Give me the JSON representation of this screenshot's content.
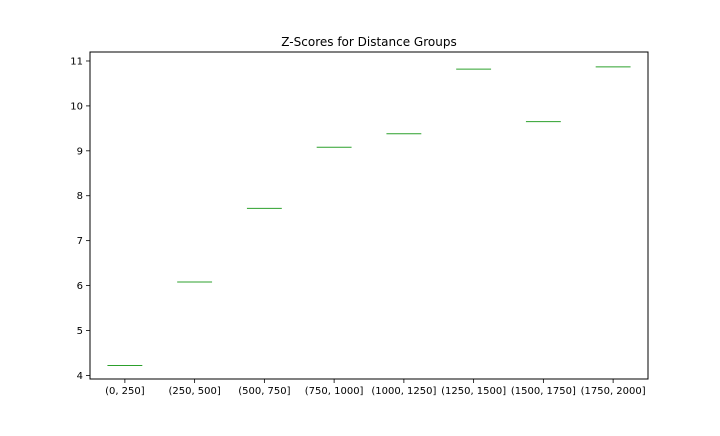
{
  "chart_data": {
    "type": "box",
    "title": "Z-Scores for Distance Groups",
    "xlabel": "",
    "ylabel": "",
    "categories": [
      "(0, 250]",
      "(250, 500]",
      "(500, 750]",
      "(750, 1000]",
      "(1000, 1250]",
      "(1250, 1500]",
      "(1500, 1750]",
      "(1750, 2000]"
    ],
    "values": [
      4.22,
      6.08,
      7.72,
      9.08,
      9.38,
      10.82,
      9.65,
      10.87
    ],
    "yticks": [
      4,
      5,
      6,
      7,
      8,
      9,
      10,
      11
    ],
    "ylim": [
      3.92,
      11.2
    ],
    "grid": false,
    "legend": "none",
    "median_color": "#2ca02c"
  }
}
